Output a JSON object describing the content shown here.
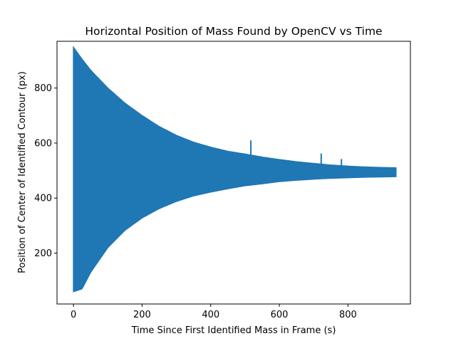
{
  "chart_data": {
    "type": "line",
    "title": "Horizontal Position of Mass Found by OpenCV vs Time",
    "xlabel": "Time Since First Identified Mass in Frame (s)",
    "ylabel": "Position of Center of Identified Contour (px)",
    "xlim": [
      -48,
      982
    ],
    "ylim": [
      15,
      970
    ],
    "xticks": [
      0,
      200,
      400,
      600,
      800
    ],
    "yticks": [
      200,
      400,
      600,
      800
    ],
    "grid": false,
    "legend": "none",
    "series": [
      {
        "color": "#1f77b4",
        "description_envelope": {
          "x": [
            0,
            25,
            50,
            100,
            150,
            200,
            250,
            300,
            350,
            400,
            450,
            500,
            550,
            600,
            650,
            700,
            750,
            800,
            850,
            900,
            940
          ],
          "upper": [
            948,
            905,
            865,
            800,
            745,
            700,
            660,
            628,
            603,
            585,
            570,
            560,
            549,
            540,
            532,
            526,
            520,
            516,
            513,
            511,
            510
          ],
          "lower": [
            60,
            70,
            130,
            220,
            283,
            328,
            362,
            388,
            408,
            422,
            434,
            445,
            452,
            460,
            465,
            469,
            472,
            474,
            476,
            477,
            478
          ]
        },
        "spikes": [
          {
            "x": 517,
            "y": 610
          },
          {
            "x": 722,
            "y": 562
          },
          {
            "x": 781,
            "y": 542
          }
        ]
      }
    ]
  }
}
